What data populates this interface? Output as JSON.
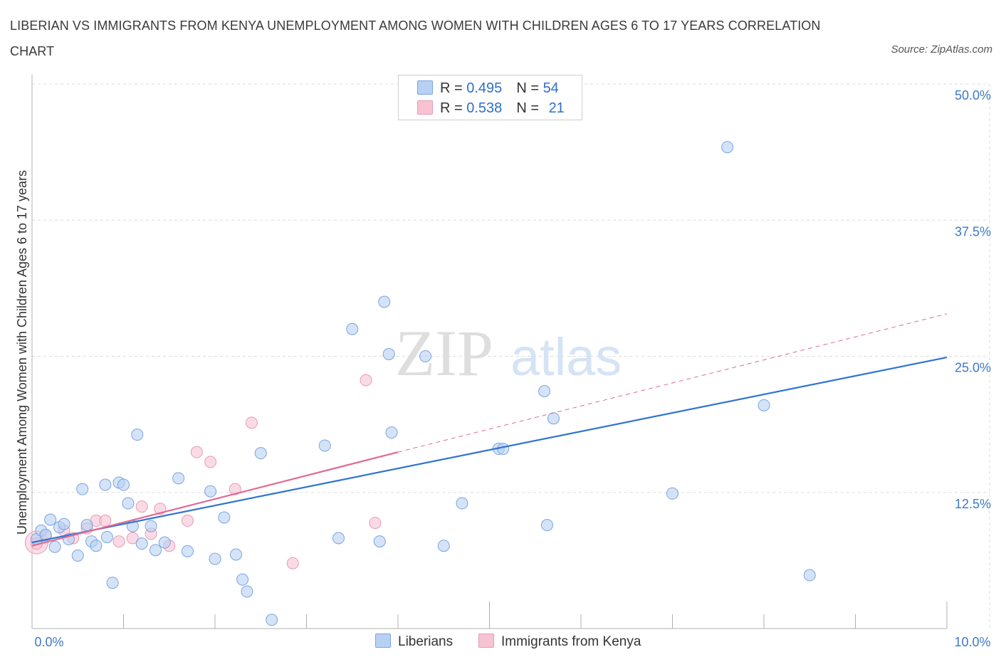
{
  "header": {
    "title": "LIBERIAN VS IMMIGRANTS FROM KENYA UNEMPLOYMENT AMONG WOMEN WITH CHILDREN AGES 6 TO 17 YEARS CORRELATION CHART",
    "source": "Source: ZipAtlas.com"
  },
  "watermark": {
    "zip": "ZIP",
    "atlas": "atlas"
  },
  "legend_top": {
    "rows": [
      {
        "r_label": "R =",
        "r_value": "0.495",
        "n_label": "N =",
        "n_value": "54"
      },
      {
        "r_label": "R =",
        "r_value": "0.538",
        "n_label": "N =",
        "n_value": "21"
      }
    ]
  },
  "legend_bottom": {
    "items": [
      "Liberians",
      "Immigrants from Kenya"
    ]
  },
  "colors": {
    "blue_fill": "#b8d0f2",
    "blue_stroke": "#7aa5e0",
    "blue_line": "#2f74d0",
    "pink_fill": "#f7c3d3",
    "pink_stroke": "#e89ab2",
    "pink_line": "#e06a94",
    "tick_label": "#3d78c9",
    "grid": "#dcdcdc"
  },
  "chart_data": {
    "type": "scatter",
    "title": "LIBERIAN VS IMMIGRANTS FROM KENYA UNEMPLOYMENT AMONG WOMEN WITH CHILDREN AGES 6 TO 17 YEARS CORRELATION CHART",
    "xlabel": "",
    "ylabel": "Unemployment Among Women with Children Ages 6 to 17 years",
    "xlim": [
      0,
      10
    ],
    "ylim": [
      0,
      50
    ],
    "x_ticks": [
      0,
      10
    ],
    "x_tick_labels": [
      "0.0%",
      "10.0%"
    ],
    "y_ticks": [
      12.5,
      25,
      37.5,
      50
    ],
    "y_tick_labels": [
      "12.5%",
      "25.0%",
      "37.5%",
      "50.0%"
    ],
    "grid": true,
    "legend_position": "bottom",
    "series": [
      {
        "name": "Liberians",
        "color": "#b8d0f2",
        "points": [
          [
            0.05,
            8.2
          ],
          [
            0.1,
            9.0
          ],
          [
            0.15,
            8.6
          ],
          [
            0.2,
            10.0
          ],
          [
            0.25,
            7.5
          ],
          [
            0.3,
            9.3
          ],
          [
            0.35,
            9.6
          ],
          [
            0.4,
            8.2
          ],
          [
            0.5,
            6.7
          ],
          [
            0.55,
            12.8
          ],
          [
            0.6,
            9.5
          ],
          [
            0.65,
            8.0
          ],
          [
            0.7,
            7.6
          ],
          [
            0.8,
            13.2
          ],
          [
            0.82,
            8.4
          ],
          [
            0.88,
            4.2
          ],
          [
            0.95,
            13.4
          ],
          [
            1.0,
            13.2
          ],
          [
            1.05,
            11.5
          ],
          [
            1.1,
            9.4
          ],
          [
            1.15,
            17.8
          ],
          [
            1.2,
            7.8
          ],
          [
            1.3,
            9.4
          ],
          [
            1.35,
            7.2
          ],
          [
            1.45,
            7.9
          ],
          [
            1.6,
            13.8
          ],
          [
            1.7,
            7.1
          ],
          [
            1.95,
            12.6
          ],
          [
            2.0,
            6.4
          ],
          [
            2.1,
            10.2
          ],
          [
            2.23,
            6.8
          ],
          [
            2.3,
            4.5
          ],
          [
            2.35,
            3.4
          ],
          [
            2.5,
            16.1
          ],
          [
            2.62,
            0.8
          ],
          [
            3.2,
            16.8
          ],
          [
            3.35,
            8.3
          ],
          [
            3.5,
            27.5
          ],
          [
            3.8,
            8.0
          ],
          [
            3.85,
            30.0
          ],
          [
            3.9,
            25.2
          ],
          [
            3.93,
            18.0
          ],
          [
            4.3,
            25.0
          ],
          [
            4.5,
            7.6
          ],
          [
            4.7,
            11.5
          ],
          [
            5.1,
            16.5
          ],
          [
            5.15,
            16.5
          ],
          [
            5.6,
            21.8
          ],
          [
            5.63,
            9.5
          ],
          [
            5.7,
            19.3
          ],
          [
            7.0,
            12.4
          ],
          [
            7.6,
            44.2
          ],
          [
            8.0,
            20.5
          ],
          [
            8.5,
            4.9
          ]
        ]
      },
      {
        "name": "Immigrants from Kenya",
        "color": "#f7c3d3",
        "points": [
          [
            0.05,
            7.8
          ],
          [
            0.15,
            8.5
          ],
          [
            0.35,
            9.0
          ],
          [
            0.45,
            8.3
          ],
          [
            0.6,
            9.2
          ],
          [
            0.7,
            9.9
          ],
          [
            0.8,
            9.9
          ],
          [
            0.95,
            8.0
          ],
          [
            1.1,
            8.3
          ],
          [
            1.2,
            11.2
          ],
          [
            1.3,
            8.7
          ],
          [
            1.4,
            11.0
          ],
          [
            1.5,
            7.6
          ],
          [
            1.7,
            9.9
          ],
          [
            1.8,
            16.2
          ],
          [
            1.95,
            15.3
          ],
          [
            2.22,
            12.8
          ],
          [
            2.4,
            18.9
          ],
          [
            2.85,
            6.0
          ],
          [
            3.65,
            22.8
          ],
          [
            3.75,
            9.7
          ]
        ]
      }
    ],
    "trend_lines": [
      {
        "series": "Liberians",
        "x": [
          0,
          10
        ],
        "y": [
          7.9,
          24.9
        ],
        "style": "solid"
      },
      {
        "series": "Immigrants from Kenya",
        "x": [
          0,
          4
        ],
        "y": [
          7.6,
          16.2
        ],
        "style": "solid"
      },
      {
        "series": "Immigrants from Kenya",
        "x": [
          4,
          10
        ],
        "y": [
          16.2,
          28.9
        ],
        "style": "dashed"
      }
    ]
  }
}
